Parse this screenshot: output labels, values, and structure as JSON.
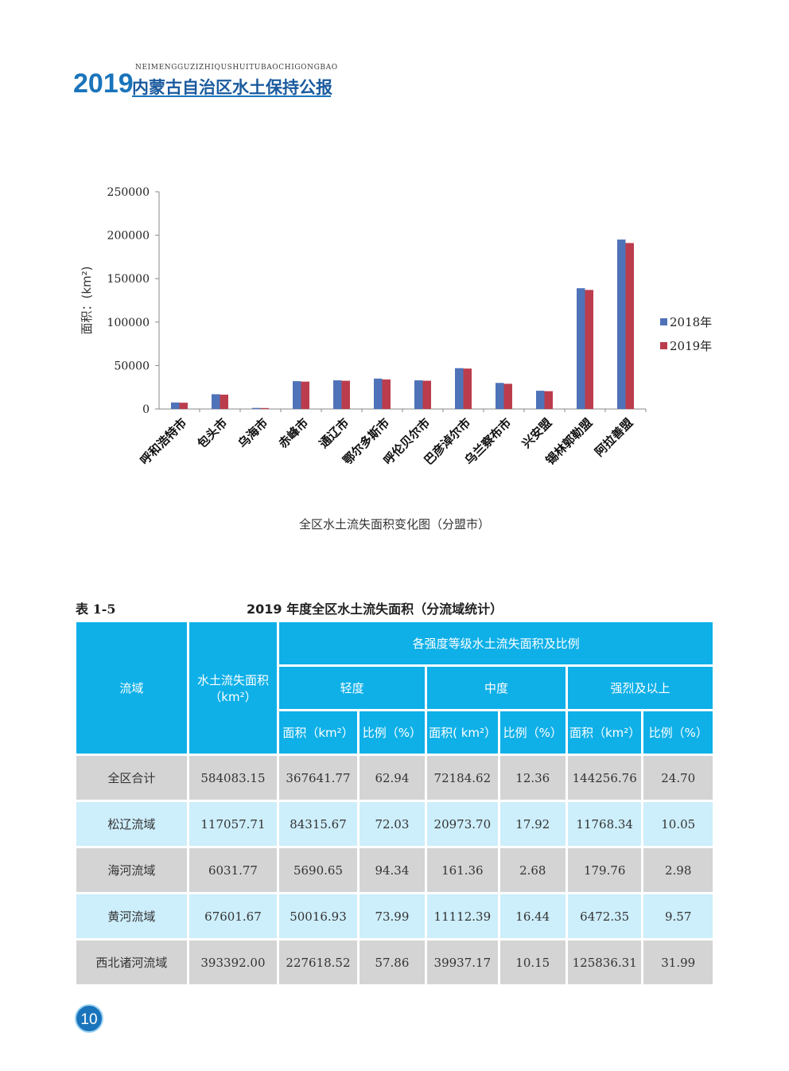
{
  "header": {
    "pinyin": "NEIMENGGUZIZHIQUSHUITUBAOCHIGONGBAO",
    "year": "2019",
    "title": "内蒙古自治区水土保持公报"
  },
  "chart_caption": "全区水土流失面积变化图（分盟市）",
  "chart_data": {
    "type": "bar",
    "ylabel": "面积：(km²)",
    "ylim": [
      0,
      250000
    ],
    "yticks": [
      0,
      50000,
      100000,
      150000,
      200000,
      250000
    ],
    "categories": [
      "呼和浩特市",
      "包头市",
      "乌海市",
      "赤峰市",
      "通辽市",
      "鄂尔多斯市",
      "呼伦贝尔市",
      "巴彦淖尔市",
      "乌兰察布市",
      "兴安盟",
      "锡林郭勒盟",
      "阿拉善盟"
    ],
    "series": [
      {
        "name": "2018年",
        "color": "#4f73b8",
        "values": [
          7500,
          17000,
          1200,
          32000,
          33000,
          35000,
          33000,
          47000,
          30000,
          21000,
          139000,
          195000
        ]
      },
      {
        "name": "2019年",
        "color": "#bb3c4c",
        "values": [
          7200,
          16500,
          1100,
          31500,
          32500,
          34000,
          32500,
          46500,
          29000,
          20500,
          137000,
          191000
        ]
      }
    ],
    "legend_position": "right",
    "grid": false
  },
  "table": {
    "label": "表 1-5",
    "title": "2019 年度全区水土流失面积（分流域统计）",
    "headers": {
      "basin": "流域",
      "area": "水土流失面积",
      "area_unit": "（km²）",
      "grades": "各强度等级水土流失面积及比例",
      "light": "轻度",
      "medium": "中度",
      "severe": "强烈及以上",
      "area_col": "面积（km²）",
      "area_col2": "面积( km²）",
      "ratio_col": "比例（%）"
    },
    "rows": [
      {
        "name": "全区合计",
        "total": "584083.15",
        "light_area": "367641.77",
        "light_ratio": "62.94",
        "medium_area": "72184.62",
        "medium_ratio": "12.36",
        "severe_area": "144256.76",
        "severe_ratio": "24.70"
      },
      {
        "name": "松辽流域",
        "total": "117057.71",
        "light_area": "84315.67",
        "light_ratio": "72.03",
        "medium_area": "20973.70",
        "medium_ratio": "17.92",
        "severe_area": "11768.34",
        "severe_ratio": "10.05"
      },
      {
        "name": "海河流域",
        "total": "6031.77",
        "light_area": "5690.65",
        "light_ratio": "94.34",
        "medium_area": "161.36",
        "medium_ratio": "2.68",
        "severe_area": "179.76",
        "severe_ratio": "2.98"
      },
      {
        "name": "黄河流域",
        "total": "67601.67",
        "light_area": "50016.93",
        "light_ratio": "73.99",
        "medium_area": "11112.39",
        "medium_ratio": "16.44",
        "severe_area": "6472.35",
        "severe_ratio": "9.57"
      },
      {
        "name": "西北诸河流域",
        "total": "393392.00",
        "light_area": "227618.52",
        "light_ratio": "57.86",
        "medium_area": "39937.17",
        "medium_ratio": "10.15",
        "severe_area": "125836.31",
        "severe_ratio": "31.99"
      }
    ]
  },
  "page_number": "10"
}
